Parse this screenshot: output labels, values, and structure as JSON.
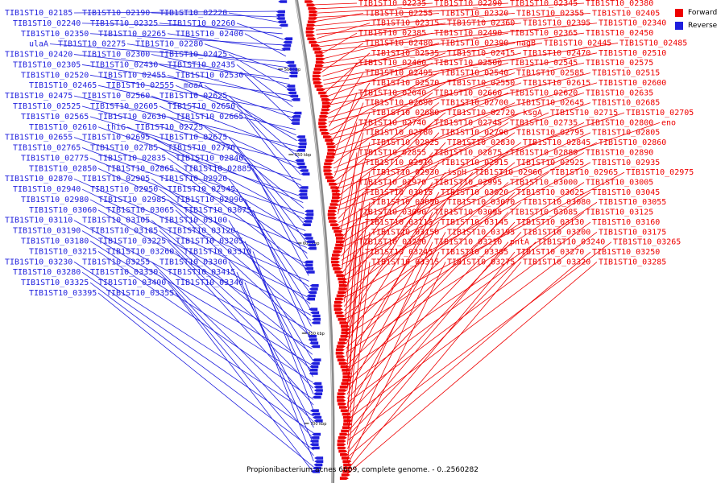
{
  "colors": {
    "forward": "#ee0000",
    "reverse": "#1f1fdd",
    "backbone": "#8a8a8a"
  },
  "legend": {
    "forward": "Forward",
    "reverse": "Reverse"
  },
  "caption": "Propionibacterium acnes 6609, complete genome. - 0..2560282",
  "ticks": [
    "500 kbp",
    "550 kbp",
    "600 kbp",
    "650 kbp",
    "700 kbp"
  ],
  "reverse_labels": [
    "TIB1ST10_02185",
    "TIB1ST10_02190",
    "TIB1ST10_02220",
    "TIB1ST10_02240",
    "TIB1ST10_02325",
    "TIB1ST10_02260",
    "TIB1ST10_02350",
    "TIB1ST10_02265",
    "TIB1ST10_02400",
    "ulaA",
    "TIB1ST10_02275",
    "TIB1ST10_02280",
    "TIB1ST10_02420",
    "TIB1ST10_02300",
    "TIB1ST10_02425",
    "TIB1ST10_02305",
    "TIB1ST10_02430",
    "TIB1ST10_02435",
    "TIB1ST10_02520",
    "TIB1ST10_02455",
    "TIB1ST10_02530",
    "TIB1ST10_02465",
    "TIB1ST10_02555",
    "moaA",
    "TIB1ST10_02475",
    "TIB1ST10_02560",
    "TIB1ST10_02625",
    "TIB1ST10_02525",
    "TIB1ST10_02605",
    "TIB1ST10_02650",
    "TIB1ST10_02565",
    "TIB1ST10_02630",
    "TIB1ST10_02665",
    "TIB1ST10_02610",
    "thiG",
    "TIB1ST10_02725",
    "TIB1ST10_02655",
    "TIB1ST10_02695",
    "TIB1ST10_02675",
    "TIB1ST10_02765",
    "TIB1ST10_02785",
    "TIB1ST10_02770",
    "TIB1ST10_02775",
    "TIB1ST10_02835",
    "TIB1ST10_02840",
    "TIB1ST10_02850",
    "TIB1ST10_02865",
    "TIB1ST10_02885",
    "TIB1ST10_02870",
    "TIB1ST10_02905",
    "TIB1ST10_02920",
    "TIB1ST10_02940",
    "TIB1ST10_02950",
    "TIB1ST10_02945",
    "TIB1ST10_02980",
    "TIB1ST10_02985",
    "TIB1ST10_02990",
    "TIB1ST10_03060",
    "TIB1ST10_03065",
    "TIB1ST10_03075",
    "TIB1ST10_03110",
    "TIB1ST10_03105",
    "TIB1ST10_03100",
    "TIB1ST10_03190",
    "TIB1ST10_03185",
    "TIB1ST10_03120",
    "TIB1ST10_03180",
    "TIB1ST10_03225",
    "TIB1ST10_03205",
    "TIB1ST10_03215",
    "TIB1ST10_03260",
    "TIB1ST10_03310",
    "TIB1ST10_03230",
    "TIB1ST10_03255",
    "TIB1ST10_03300",
    "TIB1ST10_03280",
    "TIB1ST10_03330",
    "TIB1ST10_03415",
    "TIB1ST10_03325",
    "TIB1ST10_03400",
    "TIB1ST10_03340",
    "TIB1ST10_03395",
    "TIB1ST10_03355"
  ],
  "forward_labels": [
    "TIB1ST10_02235",
    "TIB1ST10_02290",
    "TIB1ST10_02345",
    "TIB1ST10_02380",
    "TIB1ST10_02255",
    "TIB1ST10_02320",
    "TIB1ST10_02355",
    "TIB1ST10_02405",
    "TIB1ST10_02315",
    "TIB1ST10_02360",
    "TIB1ST10_02395",
    "TIB1ST10_02340",
    "TIB1ST10_02385",
    "TIB1ST10_02490",
    "TIB1ST10_02365",
    "TIB1ST10_02450",
    "TIB1ST10_02480",
    "TIB1ST10_02390",
    "nagB",
    "TIB1ST10_02445",
    "TIB1ST10_02485",
    "TIB1ST10_02535",
    "TIB1ST10_02415",
    "TIB1ST10_02470",
    "TIB1ST10_02510",
    "TIB1ST10_02460",
    "TIB1ST10_02500",
    "TIB1ST10_02545",
    "TIB1ST10_02575",
    "TIB1ST10_02495",
    "TIB1ST10_02540",
    "TIB1ST10_02585",
    "TIB1ST10_02515",
    "TIB1ST10_02570",
    "TIB1ST10_02550",
    "TIB1ST10_02615",
    "TIB1ST10_02600",
    "TIB1ST10_02640",
    "TIB1ST10_02660",
    "TIB1ST10_02620",
    "TIB1ST10_02635",
    "TIB1ST10_02690",
    "TIB1ST10_02700",
    "TIB1ST10_02645",
    "TIB1ST10_02685",
    "TIB1ST10_02680",
    "TIB1ST10_02720",
    "ksgA",
    "TIB1ST10_02715",
    "TIB1ST10_02705",
    "TIB1ST10_02740",
    "TIB1ST10_02745",
    "TIB1ST10_02735",
    "TIB1ST10_02800",
    "eno",
    "TIB1ST10_02780",
    "TIB1ST10_02790",
    "TIB1ST10_02795",
    "TIB1ST10_02805",
    "TIB1ST10_02825",
    "TIB1ST10_02830",
    "TIB1ST10_02845",
    "TIB1ST10_02860",
    "TIB1ST10_02855",
    "TIB1ST10_02875",
    "TIB1ST10_02880",
    "TIB1ST10_02890",
    "TIB1ST10_02910",
    "TIB1ST10_02915",
    "TIB1ST10_02925",
    "TIB1ST10_02935",
    "TIB1ST10_02930",
    "ispH",
    "TIB1ST10_02960",
    "TIB1ST10_02965",
    "TIB1ST10_02975",
    "TIB1ST10_02970",
    "TIB1ST10_02995",
    "TIB1ST10_03000",
    "TIB1ST10_03005",
    "TIB1ST10_03015",
    "TIB1ST10_03020",
    "TIB1ST10_03025",
    "TIB1ST10_03045",
    "TIB1ST10_03050",
    "TIB1ST10_03070",
    "TIB1ST10_03080",
    "TIB1ST10_03055",
    "TIB1ST10_03090",
    "TIB1ST10_03095",
    "TIB1ST10_03085",
    "TIB1ST10_03125",
    "TIB1ST10_03115",
    "TIB1ST10_03145",
    "TIB1ST10_03130",
    "TIB1ST10_03160",
    "TIB1ST10_03150",
    "TIB1ST10_03195",
    "TIB1ST10_03200",
    "TIB1ST10_03175",
    "TIB1ST10_03220",
    "TIB1ST10_03210",
    "pntA",
    "TIB1ST10_03240",
    "TIB1ST10_03265",
    "TIB1ST10_03245",
    "TIB1ST10_03305",
    "TIB1ST10_03270",
    "TIB1ST10_03250",
    "TIB1ST10_03315",
    "TIB1ST10_03275",
    "TIB1ST10_03320",
    "TIB1ST10_03285"
  ]
}
